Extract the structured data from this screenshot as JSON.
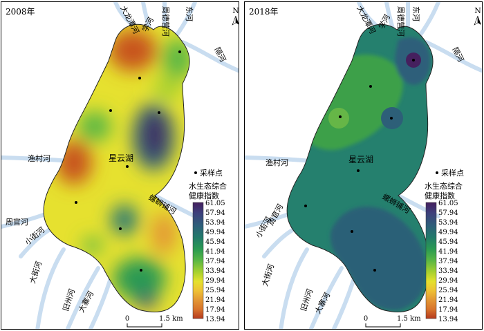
{
  "panels": [
    {
      "year_label": "2008年",
      "north": "N",
      "lake_label": "星云湖",
      "rivers": {
        "dalongtan": "大龙潭河",
        "xue": "学河",
        "zhoudeying": "周德营河",
        "dong": "东河",
        "ge": "隔河",
        "yucun": "渔村河",
        "luoshipu": "螺蛳铺河",
        "zhouguan": "周官河",
        "xiaojie": "小街河",
        "dajie": "大街河",
        "jiuzhou": "旧州河",
        "dazhai": "大寨河"
      },
      "legend": {
        "sample_point": "采样点",
        "title_line1": "水生态综合",
        "title_line2": "健康指数",
        "ticks": [
          "61.05",
          "57.94",
          "53.94",
          "49.94",
          "45.94",
          "41.94",
          "37.94",
          "33.94",
          "29.94",
          "25.94",
          "21.94",
          "17.94",
          "13.94"
        ]
      },
      "scale": {
        "zero": "0",
        "length": "1.5 km"
      }
    },
    {
      "year_label": "2018年",
      "north": "N",
      "lake_label": "星云湖",
      "rivers": {
        "dalongtan": "大龙潭河",
        "xue": "学河",
        "zhoudeying": "周德营河",
        "dong": "东河",
        "ge": "隔河",
        "yucun": "渔村河",
        "luoshipu": "螺蛳铺河",
        "zhouguan": "周官河",
        "xiaojie": "小街河",
        "dajie": "大街河",
        "jiuzhou": "旧州河",
        "dazhai": "大寨河"
      },
      "legend": {
        "sample_point": "采样点",
        "title_line1": "水生态综合",
        "title_line2": "健康指数",
        "ticks": [
          "61.05",
          "57.94",
          "53.94",
          "49.94",
          "45.94",
          "41.94",
          "37.94",
          "33.94",
          "29.94",
          "25.94",
          "21.94",
          "17.94",
          "13.94"
        ]
      },
      "scale": {
        "zero": "0",
        "length": "1.5 km"
      }
    }
  ],
  "colors": {
    "ramp": [
      "#45205e",
      "#3d3f7c",
      "#2e5f7a",
      "#227a6a",
      "#2a9a52",
      "#5ab744",
      "#a7d12f",
      "#e4e12e",
      "#eec135",
      "#e39735",
      "#d8742c",
      "#c85324",
      "#b43a1e"
    ],
    "river": "#c9ddf0",
    "outline": "#222222"
  }
}
